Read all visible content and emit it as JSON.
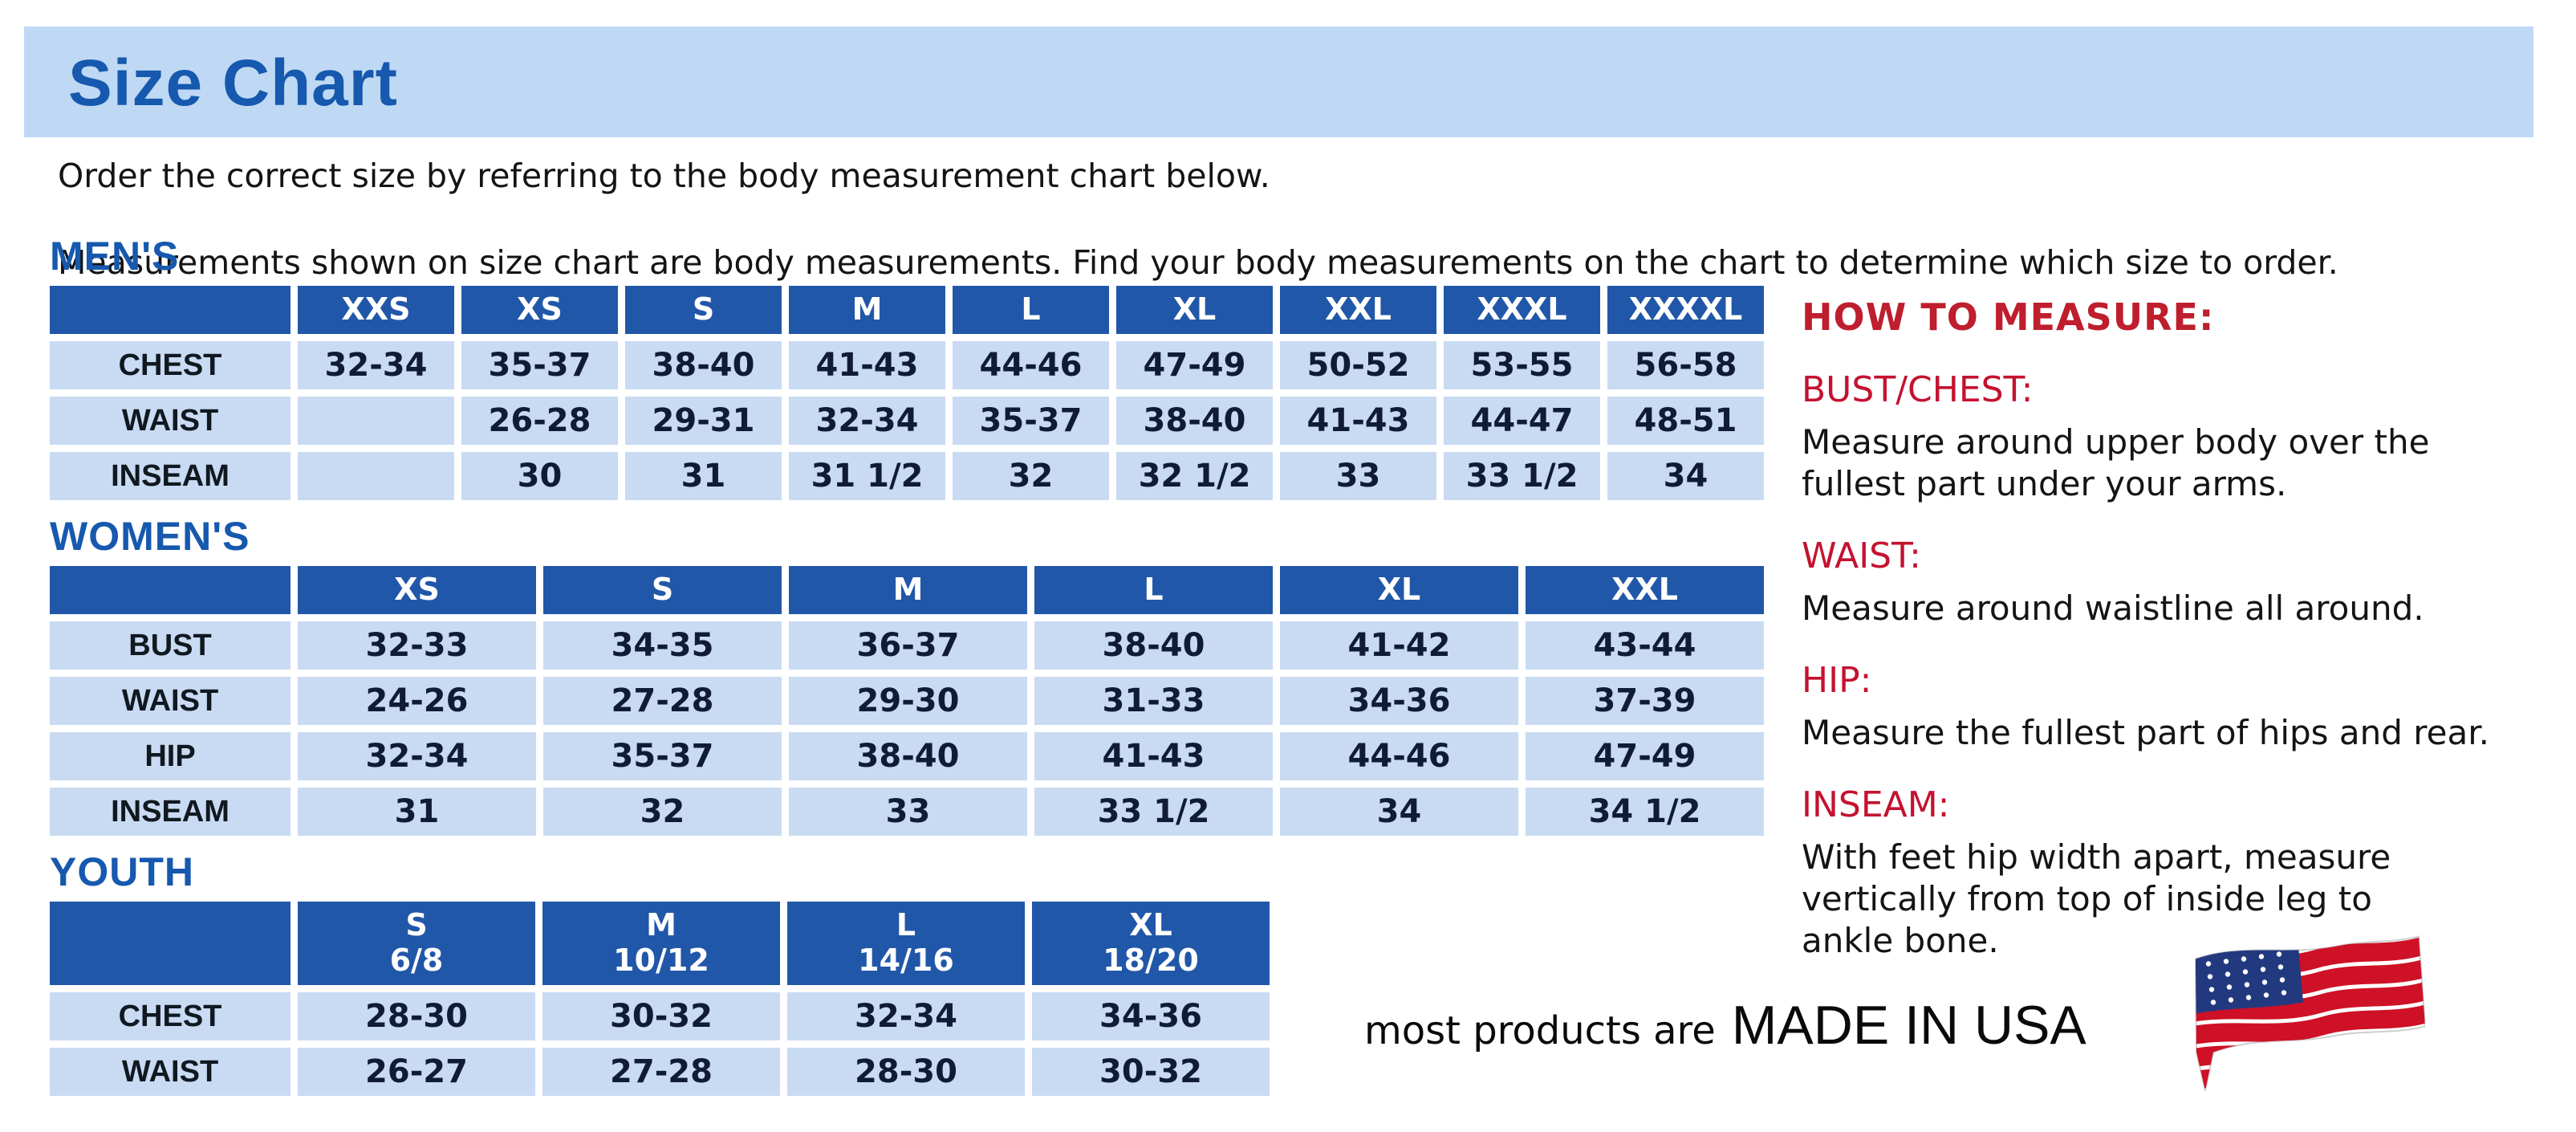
{
  "page": {
    "title": "Size Chart",
    "intro_line1": "Order the correct size by referring to the body measurement chart below.",
    "intro_line2": "Measurements shown on size chart are body measurements.  Find your body measurements on the chart to determine which size to order."
  },
  "tables": {
    "mens": {
      "heading": "MEN'S",
      "columns": [
        "XXS",
        "XS",
        "S",
        "M",
        "L",
        "XL",
        "XXL",
        "XXXL",
        "XXXXL"
      ],
      "rows": [
        {
          "label": "CHEST",
          "values": [
            "32-34",
            "35-37",
            "38-40",
            "41-43",
            "44-46",
            "47-49",
            "50-52",
            "53-55",
            "56-58"
          ]
        },
        {
          "label": "WAIST",
          "values": [
            "",
            "26-28",
            "29-31",
            "32-34",
            "35-37",
            "38-40",
            "41-43",
            "44-47",
            "48-51"
          ]
        },
        {
          "label": "INSEAM",
          "values": [
            "",
            "30",
            "31",
            "31 1/2",
            "32",
            "32 1/2",
            "33",
            "33 1/2",
            "34"
          ]
        }
      ]
    },
    "womens": {
      "heading": "WOMEN'S",
      "columns": [
        "XS",
        "S",
        "M",
        "L",
        "XL",
        "XXL"
      ],
      "rows": [
        {
          "label": "BUST",
          "values": [
            "32-33",
            "34-35",
            "36-37",
            "38-40",
            "41-42",
            "43-44"
          ]
        },
        {
          "label": "WAIST",
          "values": [
            "24-26",
            "27-28",
            "29-30",
            "31-33",
            "34-36",
            "37-39"
          ]
        },
        {
          "label": "HIP",
          "values": [
            "32-34",
            "35-37",
            "38-40",
            "41-43",
            "44-46",
            "47-49"
          ]
        },
        {
          "label": "INSEAM",
          "values": [
            "31",
            "32",
            "33",
            "33 1/2",
            "34",
            "34 1/2"
          ]
        }
      ]
    },
    "youth": {
      "heading": "YOUTH",
      "columns": [
        {
          "size": "S",
          "range": "6/8"
        },
        {
          "size": "M",
          "range": "10/12"
        },
        {
          "size": "L",
          "range": "14/16"
        },
        {
          "size": "XL",
          "range": "18/20"
        }
      ],
      "rows": [
        {
          "label": "CHEST",
          "values": [
            "28-30",
            "30-32",
            "32-34",
            "34-36"
          ]
        },
        {
          "label": "WAIST",
          "values": [
            "26-27",
            "27-28",
            "28-30",
            "30-32"
          ]
        }
      ]
    }
  },
  "how_to_measure": {
    "heading": "HOW TO MEASURE:",
    "sections": [
      {
        "label": "BUST/CHEST:",
        "text": "Measure around upper body over the\nfullest part under your arms."
      },
      {
        "label": "WAIST:",
        "text": "Measure around waistline all around."
      },
      {
        "label": "HIP:",
        "text": "Measure the fullest part of hips and rear."
      },
      {
        "label": "INSEAM:",
        "text": "With feet hip width apart, measure\nvertically from top of inside leg to\nankle bone."
      }
    ]
  },
  "footer": {
    "prefix": "most products are",
    "emphasis": "MADE IN USA",
    "flag_icon": "usa-flag-icon"
  },
  "colors": {
    "banner_bg": "#BFD9F4",
    "title_blue": "#1659AE",
    "header_blue": "#2157A8",
    "cell_blue": "#C9DBF3",
    "red_heading": "#BE1E2D",
    "red_sub": "#C41230",
    "flag_red": "#CE1126",
    "flag_blue": "#22397F",
    "body_text": "#141414"
  }
}
